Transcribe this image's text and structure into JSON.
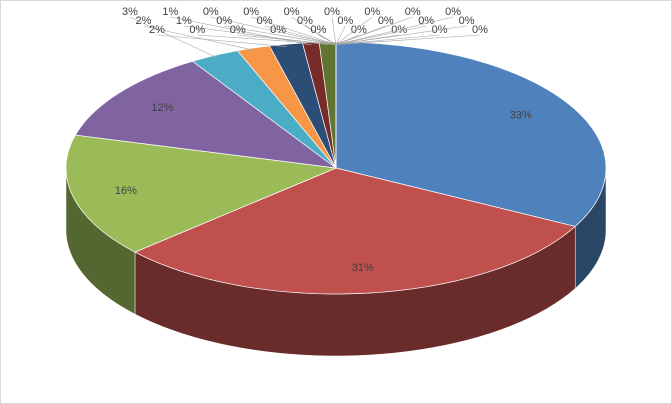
{
  "chart_data": {
    "type": "pie",
    "values": [
      33,
      31,
      16,
      12,
      3,
      2,
      2,
      1,
      1,
      0,
      0,
      0,
      0,
      0,
      0,
      0,
      0,
      0,
      0,
      0,
      0,
      0,
      0,
      0,
      0,
      0,
      0,
      0,
      0,
      0,
      0
    ],
    "value_labels": [
      "33%",
      "31%",
      "16%",
      "12%",
      "3%",
      "2%",
      "2%",
      "1%",
      "1%",
      "0%",
      "0%",
      "0%",
      "0%",
      "0%",
      "0%",
      "0%",
      "0%",
      "0%",
      "0%",
      "0%",
      "0%",
      "0%",
      "0%",
      "0%",
      "0%",
      "0%",
      "0%",
      "0%",
      "0%",
      "0%",
      "0%"
    ],
    "colors": [
      "#4f81bd",
      "#c0504d",
      "#9bbb59",
      "#8064a2",
      "#4bacc6",
      "#f79646",
      "#2c4d75",
      "#772c2a",
      "#5f7530",
      "#4d3b62",
      "#276a7c",
      "#b65708",
      "#729aca",
      "#cd7371",
      "#afc97a",
      "#9983b5",
      "#6fbdd1",
      "#f9ab6b",
      "#3a679c",
      "#9e3b38",
      "#7f9c40",
      "#664f83",
      "#358ea6",
      "#f27a0e",
      "#4f81bd",
      "#c0504d",
      "#9bbb59",
      "#8064a2",
      "#4bacc6",
      "#f79646",
      "#2c4d75"
    ]
  }
}
